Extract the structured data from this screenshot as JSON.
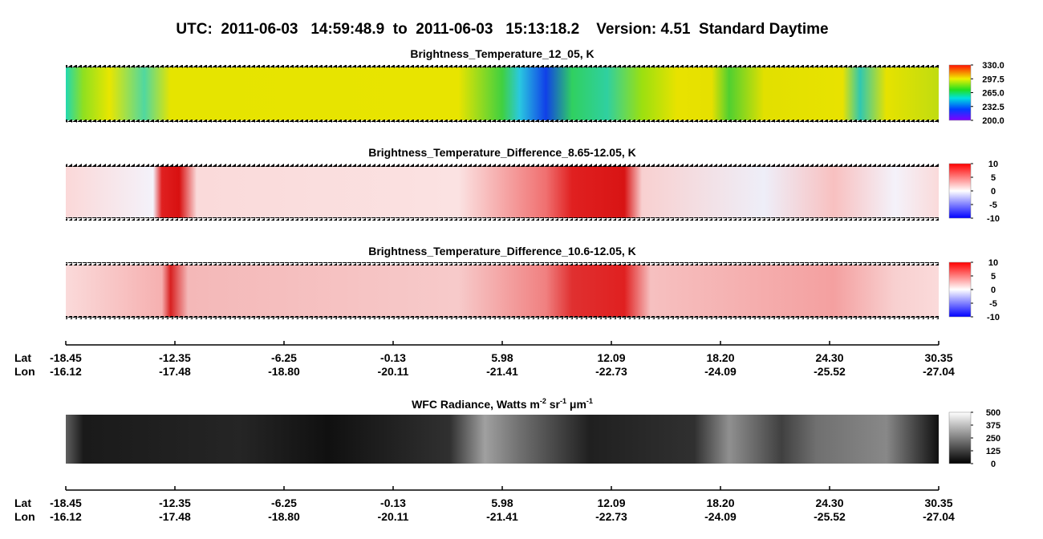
{
  "title": "UTC:  2011-06-03   14:59:48.9  to  2011-06-03   15:13:18.2    Version: 4.51  Standard Daytime",
  "chart_data": [
    {
      "type": "heatmap",
      "title": "Brightness_Temperature_12_05, K",
      "clim": [
        200,
        330
      ],
      "cticks": [
        {
          "value": 330,
          "label": "330.0"
        },
        297.5,
        {
          "value": 265,
          "label": "265.0"
        },
        232.5,
        {
          "value": 200,
          "label": "200.0"
        }
      ]
    },
    {
      "type": "heatmap",
      "title": "Brightness_Temperature_Difference_8.65-12.05, K",
      "clim": [
        -10,
        10
      ],
      "cticks": [
        10,
        5,
        0,
        -5,
        -10
      ]
    },
    {
      "type": "heatmap",
      "title": "Brightness_Temperature_Difference_10.6-12.05, K",
      "clim": [
        -10,
        10
      ],
      "cticks": [
        10,
        5,
        0,
        -5,
        -10
      ]
    },
    {
      "type": "heatmap",
      "title_parts": [
        "WFC Radiance, Watts m",
        "-2",
        " sr",
        "-1",
        " μm",
        "-1"
      ],
      "clim": [
        0,
        500
      ],
      "cticks": [
        500,
        375,
        250,
        125,
        0
      ]
    }
  ],
  "location_axes": [
    {
      "lat_label": "Lat",
      "lon_label": "Lon",
      "lat": [
        "-18.45",
        "-12.35",
        "-6.25",
        "-0.13",
        "5.98",
        "12.09",
        "18.20",
        "24.30",
        "30.35"
      ],
      "lon": [
        "-16.12",
        "-17.48",
        "-18.80",
        "-20.11",
        "-21.41",
        "-22.73",
        "-24.09",
        "-25.52",
        "-27.04"
      ]
    },
    {
      "lat_label": "Lat",
      "lon_label": "Lon",
      "lat": [
        "-18.45",
        "-12.35",
        "-6.25",
        "-0.13",
        "5.98",
        "12.09",
        "18.20",
        "24.30",
        "30.35"
      ],
      "lon": [
        "-16.12",
        "-17.48",
        "-18.80",
        "-20.11",
        "-21.41",
        "-22.73",
        "-24.09",
        "-25.52",
        "-27.04"
      ]
    }
  ]
}
